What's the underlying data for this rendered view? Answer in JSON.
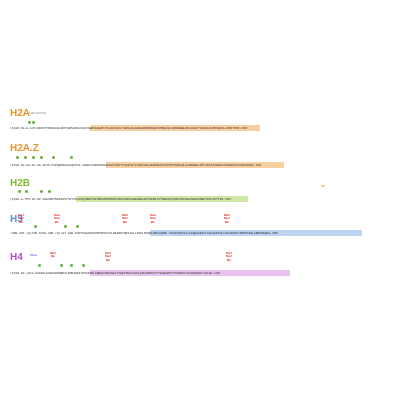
{
  "colors": {
    "h2a": "#e8932c",
    "h2az": "#e8932c",
    "h2b": "#7dbb2e",
    "h3": "#5a8fd6",
    "h4": "#b14fc0",
    "me": "#e03030",
    "ac": "#6bb33a",
    "ph": "#6a5bd6",
    "ub": "#e8932c"
  },
  "tracks": [
    {
      "id": "h2a",
      "title": "H2A",
      "subtitle": "canonical",
      "sequence": "(S)HN·SG·G·G(R)GKKSTTRSAKAGLQFPVGRVGRFLKKGYAERVGAGAPVYLAAVLEYLTAEVLELAGNAARDNKKARIIPRHLQLAIRNDEELNKLLGGVTIASGGVLPNIHAVLLPKKTVKK·COO⁻",
      "mods": [
        {
          "label": "ac",
          "kind": "ac"
        }
      ]
    },
    {
      "id": "h2az",
      "title": "H2A.Z",
      "subtitle": "",
      "sequence": "(S)HN·SG·GG·GG·GG·APTS·KAPQDKSKAGLQFPVG·IHRFLKSRVHSHGRVGATSAVYTAAILEYLTAEVLELAGNASKDLKVKRITPRHLQLAIRGDEELDTLIKATIAGGGVIPHIHKSLIVKKTEKRI·COO⁻",
      "mods": [
        {
          "label": "ac",
          "kind": "ac"
        }
      ]
    },
    {
      "id": "h2b",
      "title": "H2B",
      "subtitle": "",
      "sequence": "(S)HN·A·TPS·SA·AP·AGEKKRTNKRTESYSVYVKVLKQVHPGTSISSKAMGIMNSFVNDIFERIAGEASRLAHYNKRSTITSREIQTAVRLMLPGELAKHAVSEGTKAVTKYTSS·COO⁻",
      "mods": [
        {
          "label": "Ub",
          "kind": "ub"
        }
      ]
    },
    {
      "id": "h3",
      "title": "H3",
      "subtitle": "",
      "sequence": "⁺H3N·ART·(Q)TAR·STGG·APR·(Q)LAT·AAR·SAPTAGGVKKPHRYRPGTVALREIRRYQKSTELLIRKLPFQRLVREIAQDF·TDLRFQSTAILALQEAAEAYLVGLFEDTNLCAIHAKRVTIMPKDIQLARRIRGERA·COO⁻",
      "mods": [
        {
          "label": "Me3",
          "kind": "me"
        },
        {
          "label": "Me2",
          "kind": "me"
        },
        {
          "label": "Me",
          "kind": "me"
        },
        {
          "label": "Ac",
          "kind": "ac"
        }
      ]
    },
    {
      "id": "h4",
      "title": "H4",
      "subtitle": "",
      "sequence": "(S)HN·SG·(R)G·KGGKGLGKGGAKRHRKVLRDNIQGITKPAIRRLARRGGVKRISGLIYEETRGVLKVFLENVIRDSVTYTEHAKRKTVTAMDVVYALKRQGRTLYGFGG·COO⁻",
      "mods": [
        {
          "label": "Phos",
          "kind": "ph"
        },
        {
          "label": "Me3",
          "kind": "me"
        },
        {
          "label": "Me2",
          "kind": "me"
        },
        {
          "label": "Me",
          "kind": "me"
        }
      ]
    }
  ]
}
